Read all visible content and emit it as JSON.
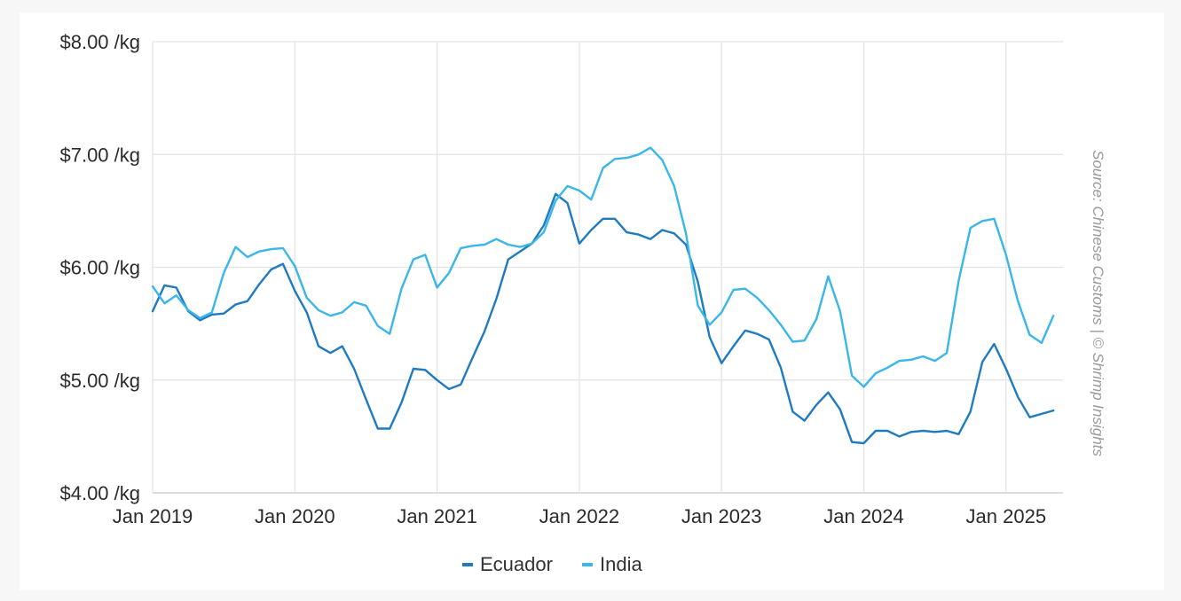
{
  "chart_data": {
    "type": "line",
    "ylim": [
      4,
      8
    ],
    "y_ticks": [
      {
        "value": 8,
        "label": "$8.00 /kg"
      },
      {
        "value": 7,
        "label": "$7.00 /kg"
      },
      {
        "value": 6,
        "label": "$6.00 /kg"
      },
      {
        "value": 5,
        "label": "$5.00 /kg"
      },
      {
        "value": 4,
        "label": "$4.00 /kg"
      }
    ],
    "x_ticks": [
      {
        "value": "2019-01",
        "label": "Jan 2019"
      },
      {
        "value": "2020-01",
        "label": "Jan 2020"
      },
      {
        "value": "2021-01",
        "label": "Jan 2021"
      },
      {
        "value": "2022-01",
        "label": "Jan 2022"
      },
      {
        "value": "2023-01",
        "label": "Jan 2023"
      },
      {
        "value": "2024-01",
        "label": "Jan 2024"
      },
      {
        "value": "2025-01",
        "label": "Jan 2025"
      }
    ],
    "x_range": [
      "2019-01",
      "2025-05"
    ],
    "grid": true,
    "legend_position": "bottom-center",
    "source": "Source: Chinese Customs | © Shrimp Insights",
    "x": [
      "2019-01",
      "2019-02",
      "2019-03",
      "2019-04",
      "2019-05",
      "2019-06",
      "2019-07",
      "2019-08",
      "2019-09",
      "2019-10",
      "2019-11",
      "2019-12",
      "2020-01",
      "2020-02",
      "2020-03",
      "2020-04",
      "2020-05",
      "2020-06",
      "2020-07",
      "2020-08",
      "2020-09",
      "2020-10",
      "2020-11",
      "2020-12",
      "2021-01",
      "2021-02",
      "2021-03",
      "2021-04",
      "2021-05",
      "2021-06",
      "2021-07",
      "2021-08",
      "2021-09",
      "2021-10",
      "2021-11",
      "2021-12",
      "2022-01",
      "2022-02",
      "2022-03",
      "2022-04",
      "2022-05",
      "2022-06",
      "2022-07",
      "2022-08",
      "2022-09",
      "2022-10",
      "2022-11",
      "2022-12",
      "2023-01",
      "2023-02",
      "2023-03",
      "2023-04",
      "2023-05",
      "2023-06",
      "2023-07",
      "2023-08",
      "2023-09",
      "2023-10",
      "2023-11",
      "2023-12",
      "2024-01",
      "2024-02",
      "2024-03",
      "2024-04",
      "2024-05",
      "2024-06",
      "2024-07",
      "2024-08",
      "2024-09",
      "2024-10",
      "2024-11",
      "2024-12",
      "2025-01",
      "2025-02",
      "2025-03",
      "2025-04",
      "2025-05"
    ],
    "series": [
      {
        "name": "Ecuador",
        "color": "#1f7bbf",
        "values": [
          5.61,
          5.84,
          5.82,
          5.61,
          5.53,
          5.58,
          5.59,
          5.67,
          5.7,
          5.85,
          5.98,
          6.03,
          5.79,
          5.6,
          5.3,
          5.24,
          5.3,
          5.1,
          4.83,
          4.57,
          4.57,
          4.8,
          5.1,
          5.09,
          5.0,
          4.92,
          4.96,
          5.2,
          5.43,
          5.72,
          6.07,
          6.14,
          6.21,
          6.37,
          6.65,
          6.57,
          6.21,
          6.33,
          6.43,
          6.43,
          6.31,
          6.29,
          6.25,
          6.33,
          6.3,
          6.2,
          5.87,
          5.38,
          5.15,
          5.3,
          5.44,
          5.41,
          5.36,
          5.11,
          4.72,
          4.64,
          4.78,
          4.89,
          4.74,
          4.45,
          4.44,
          4.55,
          4.55,
          4.5,
          4.54,
          4.55,
          4.54,
          4.55,
          4.52,
          4.72,
          5.16,
          5.32,
          5.1,
          4.85,
          4.67,
          4.7,
          4.73
        ]
      },
      {
        "name": "India",
        "color": "#3ab6e8",
        "values": [
          5.83,
          5.68,
          5.75,
          5.62,
          5.55,
          5.6,
          5.95,
          6.18,
          6.09,
          6.14,
          6.16,
          6.17,
          6.01,
          5.73,
          5.62,
          5.57,
          5.6,
          5.69,
          5.66,
          5.48,
          5.41,
          5.81,
          6.07,
          6.11,
          5.82,
          5.95,
          6.17,
          6.19,
          6.2,
          6.25,
          6.2,
          6.18,
          6.21,
          6.31,
          6.59,
          6.72,
          6.68,
          6.6,
          6.88,
          6.96,
          6.97,
          7.0,
          7.06,
          6.95,
          6.72,
          6.3,
          5.66,
          5.49,
          5.6,
          5.8,
          5.81,
          5.73,
          5.62,
          5.49,
          5.34,
          5.35,
          5.54,
          5.92,
          5.61,
          5.04,
          4.94,
          5.06,
          5.11,
          5.17,
          5.18,
          5.21,
          5.17,
          5.24,
          5.88,
          6.35,
          6.41,
          6.43,
          6.11,
          5.7,
          5.4,
          5.33,
          5.57
        ]
      }
    ]
  }
}
